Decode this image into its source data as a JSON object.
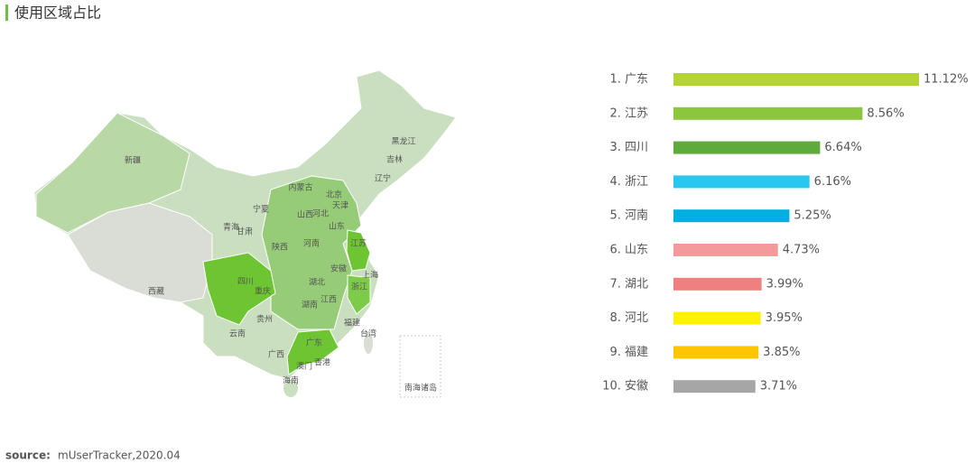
{
  "title": "使用区域占比",
  "chart_data": [
    {
      "type": "map",
      "regions": [
        "新疆",
        "西藏",
        "青海",
        "甘肃",
        "宁夏",
        "内蒙古",
        "黑龙江",
        "吉林",
        "辽宁",
        "北京",
        "天津",
        "河北",
        "山西",
        "山东",
        "陕西",
        "河南",
        "江苏",
        "安徽",
        "上海",
        "湖北",
        "四川",
        "重庆",
        "浙江",
        "湖南",
        "江西",
        "贵州",
        "云南",
        "福建",
        "台湾",
        "广西",
        "广东",
        "香港",
        "澳门",
        "海南",
        "南海诸岛"
      ]
    },
    {
      "type": "bar",
      "orientation": "horizontal",
      "categories": [
        "1. 广东",
        "2. 江苏",
        "3. 四川",
        "4. 浙江",
        "5. 河南",
        "6. 山东",
        "7. 湖北",
        "8. 河北",
        "9. 福建",
        "10. 安徽"
      ],
      "values": [
        11.12,
        8.56,
        6.64,
        6.16,
        5.25,
        4.73,
        3.99,
        3.95,
        3.85,
        3.71
      ],
      "value_labels": [
        "11.12%",
        "8.56%",
        "6.64%",
        "6.16%",
        "5.25%",
        "4.73%",
        "3.99%",
        "3.95%",
        "3.85%",
        "3.71%"
      ],
      "colors": [
        "#b5d334",
        "#8cc63f",
        "#5faa3d",
        "#29c6ef",
        "#00b0e0",
        "#f59a9a",
        "#f07f7f",
        "#fff200",
        "#ffc600",
        "#a6a6a6"
      ]
    }
  ],
  "source": {
    "label": "source:",
    "text": "mUserTracker,2020.04"
  }
}
